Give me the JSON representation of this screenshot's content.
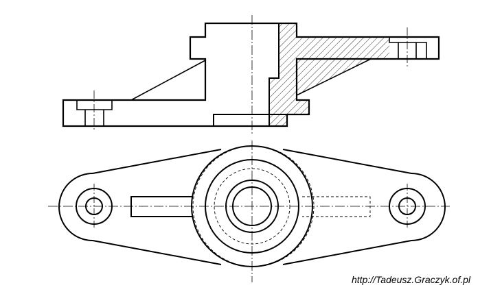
{
  "credit": "http://Tadeusz.Graczyk.of.pl",
  "colors": {
    "line": "#000000",
    "background": "#ffffff"
  }
}
